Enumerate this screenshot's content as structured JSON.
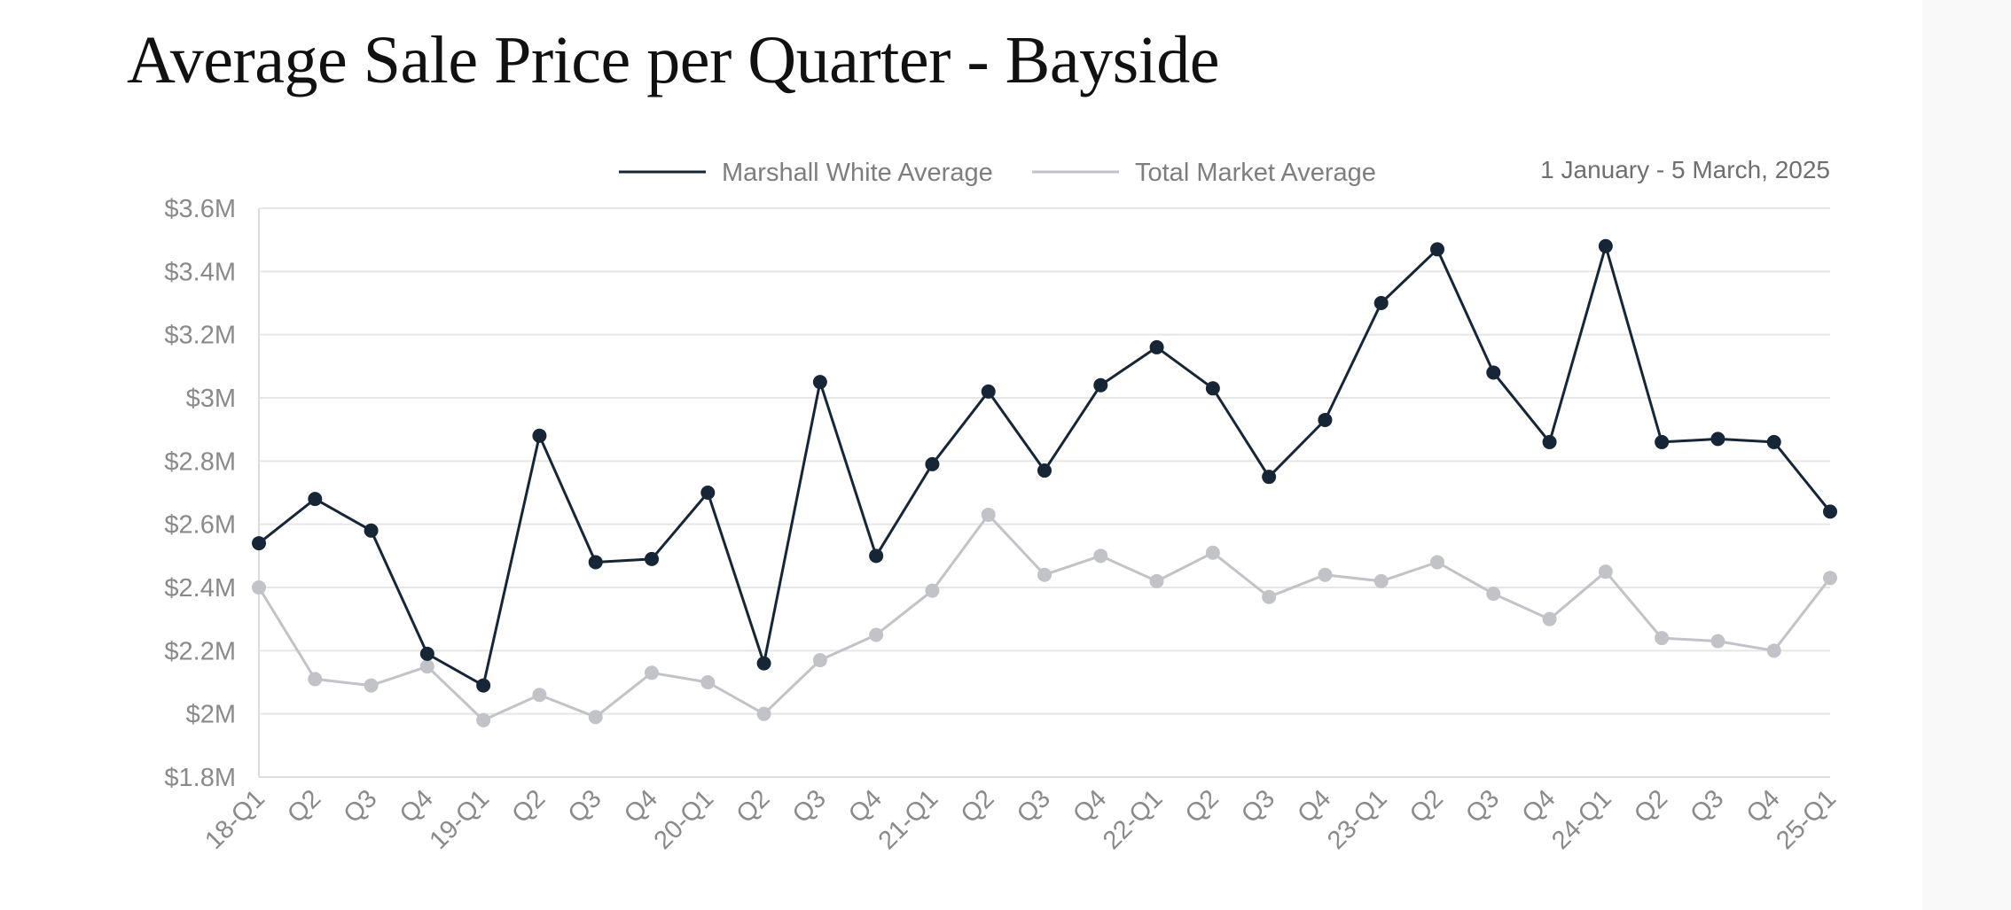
{
  "colors": {
    "marshall_white": "#162637",
    "total_market": "#c2c3c8",
    "grid": "#e6e6e6",
    "axis": "#dcdcdc",
    "tick_text": "#8a8a8a"
  },
  "chart_data": {
    "type": "line",
    "title": "Average Sale Price per Quarter - Bayside",
    "date_range": "1 January - 5 March, 2025",
    "xlabel": "",
    "ylabel": "",
    "categories": [
      "18-Q1",
      "Q2",
      "Q3",
      "Q4",
      "19-Q1",
      "Q2",
      "Q3",
      "Q4",
      "20-Q1",
      "Q2",
      "Q3",
      "Q4",
      "21-Q1",
      "Q2",
      "Q3",
      "Q4",
      "22-Q1",
      "Q2",
      "Q3",
      "Q4",
      "23-Q1",
      "Q2",
      "Q3",
      "Q4",
      "24-Q1",
      "Q2",
      "Q3",
      "Q4",
      "25-Q1"
    ],
    "ylim": [
      1.8,
      3.6
    ],
    "yticks": [
      1.8,
      2.0,
      2.2,
      2.4,
      2.6,
      2.8,
      3.0,
      3.2,
      3.4,
      3.6
    ],
    "ytick_labels": [
      "$1.8M",
      "$2M",
      "$2.2M",
      "$2.4M",
      "$2.6M",
      "$2.8M",
      "$3M",
      "$3.2M",
      "$3.4M",
      "$3.6M"
    ],
    "value_unit": "$M",
    "grid": true,
    "legend_position": "top",
    "series": [
      {
        "name": "Total Market Average",
        "color": "#c2c3c8",
        "values": [
          2.4,
          2.11,
          2.09,
          2.15,
          1.98,
          2.06,
          1.99,
          2.13,
          2.1,
          2.0,
          2.17,
          2.25,
          2.39,
          2.63,
          2.44,
          2.5,
          2.42,
          2.51,
          2.37,
          2.44,
          2.42,
          2.48,
          2.38,
          2.3,
          2.45,
          2.24,
          2.23,
          2.2,
          2.43
        ]
      },
      {
        "name": "Marshall White Average",
        "color": "#162637",
        "values": [
          2.54,
          2.68,
          2.58,
          2.19,
          2.09,
          2.88,
          2.48,
          2.49,
          2.7,
          2.16,
          3.05,
          2.5,
          2.79,
          3.02,
          2.77,
          3.04,
          3.16,
          3.03,
          2.75,
          2.93,
          3.3,
          3.47,
          3.08,
          2.86,
          3.48,
          2.86,
          2.87,
          2.86,
          2.64
        ]
      }
    ]
  }
}
